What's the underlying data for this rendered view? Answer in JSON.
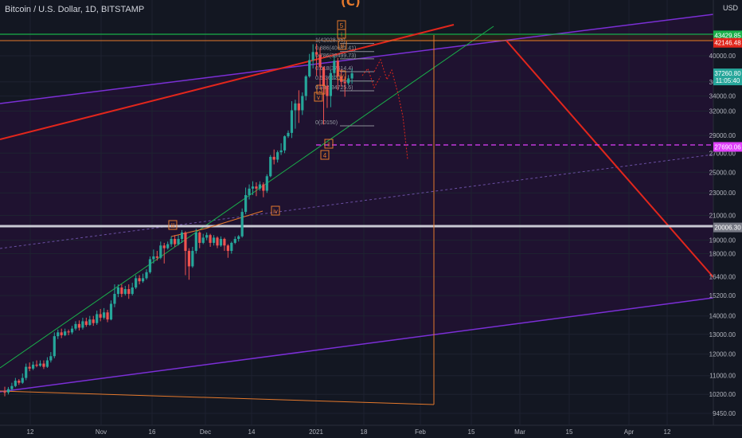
{
  "header": {
    "title": "Bitcoin / U.S. Dollar, 1D, BITSTAMP",
    "currency": "USD",
    "wave_top_label": "(C)"
  },
  "colors": {
    "background": "#131722",
    "up": "#26a69a",
    "down": "#ef5350",
    "purple": "#7b2fd6",
    "green": "#19b04a",
    "red": "#e1261c",
    "orange": "#e5792c",
    "magenta": "#e040fb",
    "grey": "#9598a1"
  },
  "chart_data": {
    "type": "candlestick",
    "symbol": "Bitcoin / U.S. Dollar",
    "interval": "1D",
    "exchange": "BITSTAMP",
    "scale": "log",
    "ylim": [
      9300,
      52000
    ],
    "x_ticks": [
      "12",
      "Nov",
      "16",
      "Dec",
      "14",
      "2021",
      "18",
      "Feb",
      "15",
      "Mar",
      "15",
      "Apr",
      "12"
    ],
    "y_ticks": [
      9450,
      10200,
      11000,
      12000,
      13000,
      14000,
      15200,
      16400,
      18000,
      19000,
      21000,
      23000,
      25000,
      27000,
      29000,
      32000,
      34000,
      36000,
      40000
    ],
    "price_badges": [
      {
        "text": "43429.85",
        "value": 43429.85,
        "color": "#19b04a"
      },
      {
        "text": "42146.48",
        "value": 42146.48,
        "color": "#e1261c"
      },
      {
        "text": "37260.80",
        "value": 37260.8,
        "color": "#26a69a"
      },
      {
        "text": "11:05:40",
        "value": 36200,
        "color": "#26a69a"
      },
      {
        "text": "27690.06",
        "value": 27690.06,
        "color": "#e040fb"
      },
      {
        "text": "20006.30",
        "value": 20006.3,
        "color": "#787b86"
      }
    ],
    "fib_levels": [
      {
        "label": "1(42028.56)",
        "value": 42028.56
      },
      {
        "label": "0.886(40681.41)",
        "value": 40681.41
      },
      {
        "label": "0.786(39499.73)",
        "value": 39499.73
      },
      {
        "label": "0.618(37514.4)",
        "value": 37514.4
      },
      {
        "label": "0.5(36120)",
        "value": 36120
      },
      {
        "label": "0.382(34725.6)",
        "value": 34725.6
      },
      {
        "label": "0(30150)",
        "value": 30150
      }
    ],
    "wave_labels": [
      "iii",
      "iv",
      "3",
      "v",
      "4",
      "ii",
      "iv",
      "5",
      "i",
      "iii"
    ],
    "candles": [
      [
        10300,
        10280,
        10520,
        10120
      ],
      [
        10280,
        10420,
        10510,
        10200
      ],
      [
        10420,
        10550,
        10690,
        10350
      ],
      [
        10550,
        10780,
        10900,
        10500
      ],
      [
        10780,
        10690,
        10850,
        10600
      ],
      [
        10690,
        10900,
        11100,
        10640
      ],
      [
        10900,
        11400,
        11550,
        10800
      ],
      [
        11400,
        11320,
        11600,
        11200
      ],
      [
        11320,
        11500,
        11650,
        11250
      ],
      [
        11500,
        11450,
        11700,
        11380
      ],
      [
        11450,
        11550,
        11700,
        11400
      ],
      [
        11550,
        11400,
        11700,
        11300
      ],
      [
        11400,
        11700,
        11850,
        11350
      ],
      [
        11700,
        11900,
        12100,
        11600
      ],
      [
        11900,
        12900,
        13100,
        11800
      ],
      [
        12900,
        13100,
        13250,
        12750
      ],
      [
        13100,
        12950,
        13300,
        12800
      ],
      [
        12950,
        13150,
        13300,
        12900
      ],
      [
        13150,
        13100,
        13250,
        12950
      ],
      [
        13100,
        13300,
        13450,
        13000
      ],
      [
        13300,
        13550,
        13700,
        13200
      ],
      [
        13550,
        13350,
        13750,
        13200
      ],
      [
        13350,
        13700,
        13900,
        13250
      ],
      [
        13700,
        13500,
        13900,
        13400
      ],
      [
        13500,
        13800,
        14000,
        13450
      ],
      [
        13800,
        13600,
        14000,
        13450
      ],
      [
        13600,
        14100,
        14300,
        13500
      ],
      [
        14100,
        13900,
        14400,
        13700
      ],
      [
        13900,
        14200,
        14450,
        13800
      ],
      [
        14200,
        13800,
        14350,
        13650
      ],
      [
        13800,
        14700,
        14900,
        13750
      ],
      [
        14700,
        15300,
        15900,
        14500
      ],
      [
        15300,
        15700,
        15900,
        15100
      ],
      [
        15700,
        15300,
        15900,
        15100
      ],
      [
        15300,
        15600,
        15800,
        15200
      ],
      [
        15600,
        15300,
        15900,
        15000
      ],
      [
        15300,
        15700,
        16000,
        15200
      ],
      [
        15700,
        16300,
        16500,
        15600
      ],
      [
        16300,
        16100,
        16500,
        15900
      ],
      [
        16100,
        16300,
        16600,
        16000
      ],
      [
        16300,
        16700,
        16900,
        16200
      ],
      [
        16700,
        17600,
        17800,
        16600
      ],
      [
        17600,
        17800,
        18300,
        17300
      ],
      [
        17800,
        17700,
        18200,
        17500
      ],
      [
        17700,
        18600,
        18900,
        17600
      ],
      [
        18600,
        18400,
        18800,
        17300
      ],
      [
        18400,
        18700,
        18900,
        18300
      ],
      [
        18700,
        19100,
        19300,
        18500
      ],
      [
        19100,
        18700,
        19400,
        18500
      ],
      [
        18700,
        19100,
        19400,
        18600
      ],
      [
        19100,
        19600,
        19800,
        18800
      ],
      [
        19600,
        18200,
        19700,
        16500
      ],
      [
        18200,
        17100,
        18400,
        16200
      ],
      [
        17100,
        18200,
        18500,
        17000
      ],
      [
        18200,
        19600,
        19900,
        18000
      ],
      [
        19600,
        18800,
        19700,
        18400
      ],
      [
        18800,
        19200,
        19500,
        18700
      ],
      [
        19200,
        19400,
        19600,
        19000
      ],
      [
        19400,
        18800,
        19500,
        18500
      ],
      [
        18800,
        19200,
        19400,
        18600
      ],
      [
        19200,
        18600,
        19300,
        18400
      ],
      [
        18600,
        19100,
        19300,
        18500
      ],
      [
        19100,
        18600,
        19200,
        18200
      ],
      [
        18600,
        18200,
        18700,
        17700
      ],
      [
        18200,
        18800,
        18900,
        18000
      ],
      [
        18800,
        19100,
        19300,
        18700
      ],
      [
        19100,
        19300,
        19400,
        18900
      ],
      [
        19300,
        21300,
        21600,
        19200
      ],
      [
        21300,
        22800,
        23500,
        21100
      ],
      [
        22800,
        23400,
        23800,
        22400
      ],
      [
        23400,
        23600,
        24100,
        22800
      ],
      [
        23600,
        23400,
        24000,
        22700
      ],
      [
        23400,
        23800,
        24100,
        23200
      ],
      [
        23800,
        23200,
        24000,
        22600
      ],
      [
        23200,
        24600,
        24800,
        23000
      ],
      [
        24600,
        26600,
        26800,
        24500
      ],
      [
        26600,
        26300,
        27400,
        25800
      ],
      [
        26300,
        27100,
        27300,
        26000
      ],
      [
        27100,
        27300,
        28100,
        26800
      ],
      [
        27300,
        28900,
        29000,
        27000
      ],
      [
        28900,
        29300,
        29600,
        28700
      ],
      [
        29300,
        32100,
        33300,
        28700
      ],
      [
        32100,
        33000,
        33500,
        29800
      ],
      [
        33000,
        32100,
        34800,
        30500
      ],
      [
        32100,
        34000,
        34500,
        31500
      ],
      [
        34000,
        36800,
        37000,
        33400
      ],
      [
        36800,
        39300,
        40300,
        36600
      ],
      [
        39300,
        40600,
        41900,
        38000
      ],
      [
        40600,
        40200,
        42000,
        36900
      ],
      [
        40200,
        38200,
        41400,
        35000
      ],
      [
        38200,
        35400,
        38300,
        30300
      ],
      [
        35400,
        34000,
        36600,
        32400
      ],
      [
        34000,
        37300,
        37800,
        32500
      ],
      [
        37300,
        39200,
        40000,
        36400
      ],
      [
        39200,
        36800,
        39700,
        34800
      ],
      [
        36800,
        36000,
        37900,
        35300
      ],
      [
        36000,
        35800,
        36800,
        33900
      ],
      [
        35800,
        36500,
        37000,
        35500
      ],
      [
        36500,
        37260,
        38000,
        35700
      ]
    ]
  }
}
